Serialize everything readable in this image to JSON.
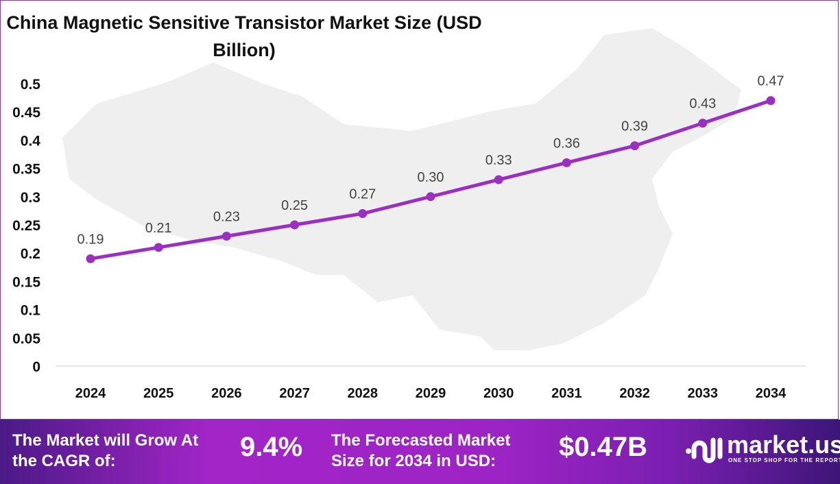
{
  "chart_data": {
    "type": "line",
    "title": "China Magnetic Sensitive Transistor Market Size (USD Billion)",
    "categories": [
      "2024",
      "2025",
      "2026",
      "2027",
      "2028",
      "2029",
      "2030",
      "2031",
      "2032",
      "2033",
      "2034"
    ],
    "values": [
      0.19,
      0.21,
      0.23,
      0.25,
      0.27,
      0.3,
      0.33,
      0.36,
      0.39,
      0.43,
      0.47
    ],
    "data_labels": [
      "0.19",
      "0.21",
      "0.23",
      "0.25",
      "0.27",
      "0.30",
      "0.33",
      "0.36",
      "0.39",
      "0.43",
      "0.47"
    ],
    "yticks": [
      "0",
      "0.05",
      "0.1",
      "0.15",
      "0.2",
      "0.25",
      "0.3",
      "0.35",
      "0.4",
      "0.45",
      "0.5"
    ],
    "ylim": [
      0,
      0.5
    ],
    "grid": false,
    "line_color": "#9b30c0"
  },
  "banner": {
    "cagr_label": "The Market will Grow At the CAGR of:",
    "cagr_value": "9.4%",
    "forecast_label": "The Forecasted Market Size for 2034 in USD:",
    "forecast_value": "$0.47B",
    "logo_name": "market.us",
    "logo_tagline": "ONE STOP SHOP FOR THE REPORTS"
  }
}
